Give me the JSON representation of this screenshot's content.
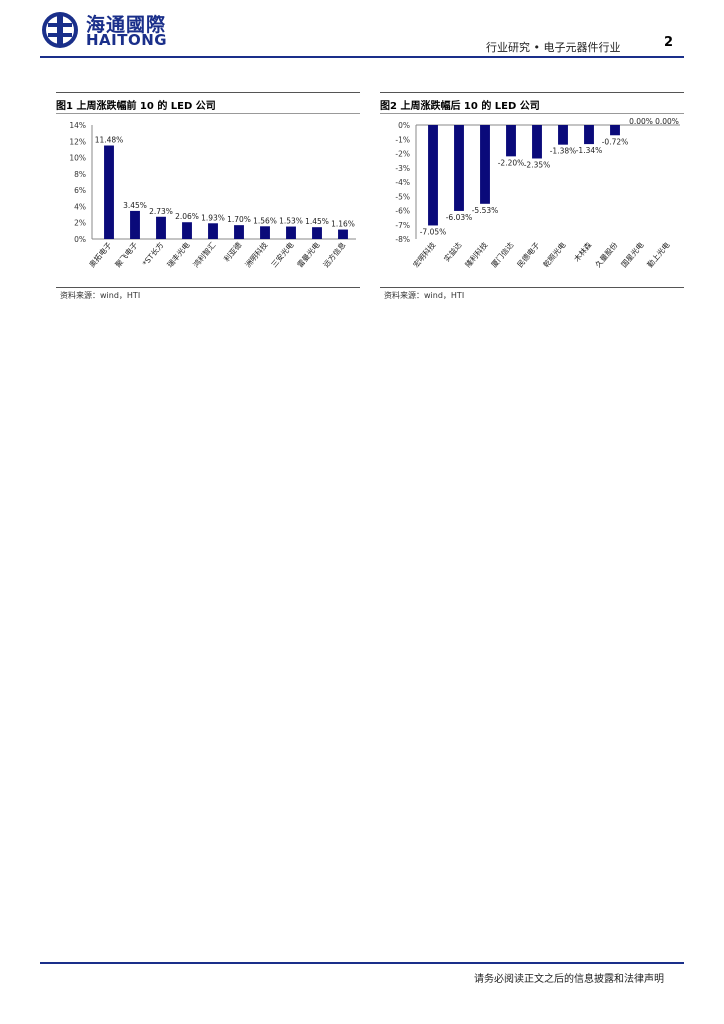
{
  "header": {
    "logo_cn": "海通國際",
    "logo_en": "HAITONG",
    "section": "行业研究 • 电子元器件行业",
    "page_number": "2"
  },
  "figures": [
    {
      "title": "图1  上周涨跌幅前 10 的 LED 公司",
      "source": "资料来源：wind，HTI"
    },
    {
      "title": "图2  上周涨跌幅后 10 的 LED 公司",
      "source": "资料来源：wind，HTI"
    }
  ],
  "footer": {
    "disclaimer": "请务必阅读正文之后的信息披露和法律声明"
  },
  "colors": {
    "brand": "#1a2f8a",
    "bar": "#0a0a7a"
  },
  "chart_data": [
    {
      "type": "bar",
      "categories": [
        "奥拓电子",
        "聚飞电子",
        "*ST长方",
        "瑞丰光电",
        "鸿利智汇",
        "利亚德",
        "洲明科技",
        "三安光电",
        "雷曼光电",
        "远方信息"
      ],
      "values": [
        11.48,
        3.45,
        2.73,
        2.06,
        1.93,
        1.7,
        1.56,
        1.53,
        1.45,
        1.16
      ],
      "value_labels": [
        "11.48%",
        "3.45%",
        "2.73%",
        "2.06%",
        "1.93%",
        "1.70%",
        "1.56%",
        "1.53%",
        "1.45%",
        "1.16%"
      ],
      "ylim": [
        0,
        14
      ],
      "yticks": [
        0,
        2,
        4,
        6,
        8,
        10,
        12,
        14
      ],
      "ytick_labels": [
        "0%",
        "2%",
        "4%",
        "6%",
        "8%",
        "10%",
        "12%",
        "14%"
      ],
      "title": "",
      "xlabel": "",
      "ylabel": ""
    },
    {
      "type": "bar",
      "categories": [
        "宏明科技",
        "实益达",
        "隆利科技",
        "厦门信达",
        "民德电子",
        "乾照光电",
        "木林森",
        "久量股份",
        "国星光电",
        "勤上光电"
      ],
      "values": [
        -7.05,
        -6.03,
        -5.53,
        -2.2,
        -2.35,
        -1.38,
        -1.34,
        -0.72,
        0.0,
        0.0
      ],
      "value_labels": [
        "-7.05%",
        "-6.03%",
        "-5.53%",
        "-2.20%",
        "-2.35%",
        "-1.38%",
        "-1.34%",
        "-0.72%",
        "0.00%",
        "0.00%"
      ],
      "ylim": [
        -8,
        0
      ],
      "yticks": [
        0,
        -1,
        -2,
        -3,
        -4,
        -5,
        -6,
        -7,
        -8
      ],
      "ytick_labels": [
        "0%",
        "-1%",
        "-2%",
        "-3%",
        "-4%",
        "-5%",
        "-6%",
        "-7%",
        "-8%"
      ],
      "title": "",
      "xlabel": "",
      "ylabel": ""
    }
  ]
}
